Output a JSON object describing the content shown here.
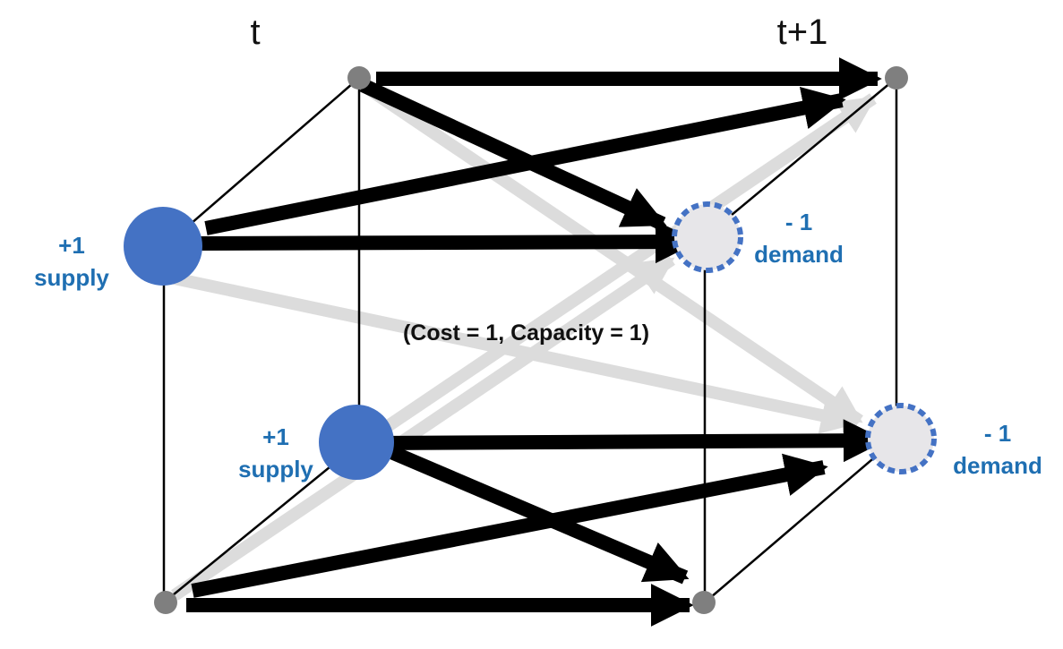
{
  "time_labels": {
    "left": "t",
    "right": "t+1"
  },
  "supply_top": {
    "value": "+1",
    "word": "supply"
  },
  "supply_bottom": {
    "value": "+1",
    "word": "supply"
  },
  "demand_top": {
    "value": "- 1",
    "word": "demand"
  },
  "demand_bottom": {
    "value": "- 1",
    "word": "demand"
  },
  "edge_annotation": "(Cost = 1, Capacity = 1)",
  "colors": {
    "supply_node": "#4472c4",
    "demand_fill": "#e7e6e9",
    "demand_border": "#4472c4",
    "grey_node": "#7f7f7f",
    "label_blue": "#1f6fb2",
    "black_arrow": "#000000",
    "grey_arrow": "#d9d9d9"
  }
}
